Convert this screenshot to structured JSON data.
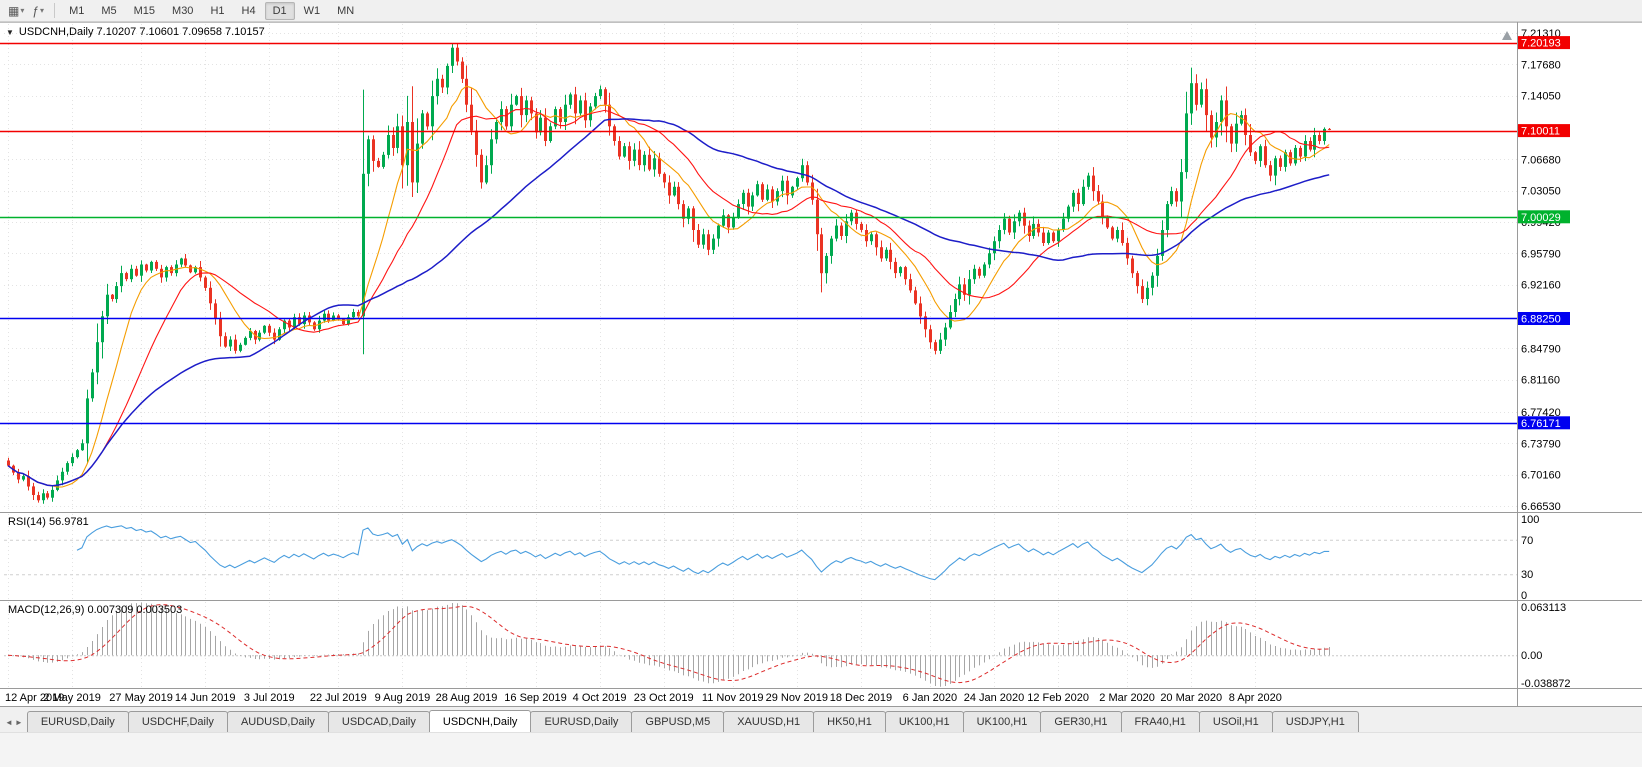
{
  "icons": {
    "chart_type": "▦",
    "indicators": "ƒ",
    "caret": "▾",
    "collapse": "▼",
    "tab_left": "◄",
    "tab_right": "►"
  },
  "toolbar": {
    "timeframes": [
      "M1",
      "M5",
      "M15",
      "M30",
      "H1",
      "H4",
      "D1",
      "W1",
      "MN"
    ],
    "active_timeframe": "D1"
  },
  "chart": {
    "collapse_icon": "▼",
    "header_text": "USDCNH,Daily  7.10207 7.10601 7.09658 7.10157"
  },
  "chart_data": {
    "type": "candlestick",
    "title": "USDCNH,Daily",
    "symbol": "USDCNH",
    "timeframe": "Daily",
    "ohlc_display": {
      "open": "7.10207",
      "high": "7.10601",
      "low": "7.09658",
      "close": "7.10157"
    },
    "y_axis": {
      "range": [
        6.6584,
        7.2235
      ],
      "ticks": [
        {
          "v": 7.2131,
          "t": "7.21310"
        },
        {
          "v": 7.1768,
          "t": "7.17680"
        },
        {
          "v": 7.1405,
          "t": "7.14050"
        },
        {
          "v": 7.0668,
          "t": "7.06680"
        },
        {
          "v": 7.0305,
          "t": "7.03050"
        },
        {
          "v": 6.9942,
          "t": "6.99420"
        },
        {
          "v": 6.9579,
          "t": "6.95790"
        },
        {
          "v": 6.9216,
          "t": "6.92160"
        },
        {
          "v": 6.8479,
          "t": "6.84790"
        },
        {
          "v": 6.8116,
          "t": "6.81160"
        },
        {
          "v": 6.7742,
          "t": "6.77420"
        },
        {
          "v": 6.7379,
          "t": "6.73790"
        },
        {
          "v": 6.7016,
          "t": "6.70160"
        },
        {
          "v": 6.6653,
          "t": "6.66530"
        }
      ]
    },
    "hlines": [
      {
        "price": 7.20193,
        "label": "7.20193",
        "color": "#f20000"
      },
      {
        "price": 7.10011,
        "label": "7.10011",
        "color": "#f20000"
      },
      {
        "price": 7.00029,
        "label": "7.00029",
        "color": "#00b22d"
      },
      {
        "price": 6.8825,
        "label": "6.88250",
        "color": "#0000f0"
      },
      {
        "price": 6.76171,
        "label": "6.76171",
        "color": "#0000f0"
      }
    ],
    "x_labels": [
      {
        "bar": 0,
        "t": "12 Apr 2019"
      },
      {
        "bar": 13,
        "t": "2 May 2019"
      },
      {
        "bar": 27,
        "t": "27 May 2019"
      },
      {
        "bar": 40,
        "t": "14 Jun 2019"
      },
      {
        "bar": 53,
        "t": "3 Jul 2019"
      },
      {
        "bar": 67,
        "t": "22 Jul 2019"
      },
      {
        "bar": 80,
        "t": "9 Aug 2019"
      },
      {
        "bar": 93,
        "t": "28 Aug 2019"
      },
      {
        "bar": 107,
        "t": "16 Sep 2019"
      },
      {
        "bar": 120,
        "t": "4 Oct 2019"
      },
      {
        "bar": 133,
        "t": "23 Oct 2019"
      },
      {
        "bar": 147,
        "t": "11 Nov 2019"
      },
      {
        "bar": 160,
        "t": "29 Nov 2019"
      },
      {
        "bar": 173,
        "t": "18 Dec 2019"
      },
      {
        "bar": 187,
        "t": "6 Jan 2020"
      },
      {
        "bar": 200,
        "t": "24 Jan 2020"
      },
      {
        "bar": 213,
        "t": "12 Feb 2020"
      },
      {
        "bar": 227,
        "t": "2 Mar 2020"
      },
      {
        "bar": 240,
        "t": "20 Mar 2020"
      },
      {
        "bar": 253,
        "t": "8 Apr 2020"
      }
    ],
    "closes": [
      6.712,
      6.704,
      6.696,
      6.7,
      6.688,
      6.678,
      6.672,
      6.68,
      6.675,
      6.684,
      6.695,
      6.705,
      6.715,
      6.722,
      6.73,
      6.738,
      6.79,
      6.82,
      6.855,
      6.885,
      6.91,
      6.905,
      6.92,
      6.935,
      6.928,
      6.94,
      6.932,
      6.945,
      6.938,
      6.948,
      6.94,
      6.93,
      6.942,
      6.935,
      6.945,
      6.952,
      6.944,
      6.936,
      6.942,
      6.93,
      6.918,
      6.9,
      6.882,
      6.862,
      6.85,
      6.858,
      6.845,
      6.852,
      6.86,
      6.868,
      6.858,
      6.866,
      6.874,
      6.866,
      6.858,
      6.87,
      6.88,
      6.872,
      6.884,
      6.876,
      6.886,
      6.878,
      6.87,
      6.88,
      6.888,
      6.88,
      6.886,
      6.882,
      6.876,
      6.884,
      6.89,
      6.885,
      7.05,
      7.09,
      7.065,
      7.058,
      7.072,
      7.095,
      7.08,
      7.105,
      7.06,
      7.11,
      7.04,
      7.085,
      7.12,
      7.105,
      7.14,
      7.16,
      7.15,
      7.175,
      7.196,
      7.18,
      7.16,
      7.13,
      7.1,
      7.072,
      7.04,
      7.06,
      7.09,
      7.11,
      7.125,
      7.105,
      7.13,
      7.14,
      7.118,
      7.135,
      7.12,
      7.098,
      7.115,
      7.088,
      7.105,
      7.125,
      7.11,
      7.13,
      7.142,
      7.12,
      7.135,
      7.112,
      7.128,
      7.14,
      7.148,
      7.13,
      7.105,
      7.088,
      7.07,
      7.082,
      7.065,
      7.078,
      7.06,
      7.072,
      7.055,
      7.068,
      7.05,
      7.04,
      7.025,
      7.035,
      7.015,
      6.998,
      7.01,
      6.985,
      6.968,
      6.98,
      6.962,
      6.975,
      6.99,
      7.002,
      6.988,
      7.0,
      7.015,
      7.028,
      7.012,
      7.025,
      7.038,
      7.02,
      7.032,
      7.018,
      7.03,
      7.042,
      7.025,
      7.035,
      7.045,
      7.06,
      7.04,
      7.02,
      6.98,
      6.935,
      6.955,
      6.975,
      6.99,
      6.978,
      6.995,
      7.005,
      6.992,
      6.985,
      6.972,
      6.98,
      6.965,
      6.952,
      6.962,
      6.948,
      6.935,
      6.942,
      6.928,
      6.915,
      6.9,
      6.885,
      6.87,
      6.855,
      6.845,
      6.858,
      6.872,
      6.89,
      6.905,
      6.922,
      6.91,
      6.928,
      6.94,
      6.932,
      6.945,
      6.958,
      6.972,
      6.985,
      6.998,
      6.982,
      6.995,
      7.005,
      6.99,
      6.978,
      6.992,
      6.982,
      6.97,
      6.982,
      6.972,
      6.985,
      6.998,
      7.012,
      7.028,
      7.015,
      7.035,
      7.048,
      7.03,
      7.018,
      7.0,
      6.988,
      6.975,
      6.985,
      6.97,
      6.952,
      6.935,
      6.92,
      6.905,
      6.918,
      6.932,
      6.955,
      6.985,
      7.015,
      7.03,
      7.018,
      7.052,
      7.12,
      7.155,
      7.13,
      7.148,
      7.118,
      7.092,
      7.11,
      7.135,
      7.105,
      7.085,
      7.108,
      7.118,
      7.095,
      7.075,
      7.065,
      7.082,
      7.06,
      7.048,
      7.068,
      7.058,
      7.075,
      7.062,
      7.08,
      7.07,
      7.088,
      7.078,
      7.095,
      7.088,
      7.102,
      7.1016
    ],
    "indicators": {
      "rsi": {
        "label": "RSI(14) 56.9781",
        "period": 14,
        "current": 56.9781,
        "levels": [
          {
            "v": 100,
            "t": "100"
          },
          {
            "v": 70,
            "t": "70"
          },
          {
            "v": 30,
            "t": "30"
          },
          {
            "v": 0,
            "t": "0"
          }
        ]
      },
      "macd": {
        "label": "MACD(12,26,9) 0.007309 0.003503",
        "fast": 12,
        "slow": 26,
        "signal": 9,
        "current_main": 0.007309,
        "current_signal": 0.003503,
        "scale": [
          {
            "v": 0.063113,
            "t": "0.063113"
          },
          {
            "v": 0,
            "t": "0.00"
          },
          {
            "v": -0.038872,
            "t": "-0.038872"
          }
        ]
      }
    },
    "colors": {
      "up": "#00a94f",
      "down": "#ea3323",
      "ma_fast": "#f59d00",
      "ma_mid": "#ff1414",
      "ma_slow": "#1d1dc8",
      "rsi": "#4a9ede",
      "macd_hist": "#a6a6a6",
      "macd_signal": "#dd2c2c",
      "grid": "#e3e3e3"
    }
  },
  "bottom_tabs": {
    "items": [
      "EURUSD,Daily",
      "USDCHF,Daily",
      "AUDUSD,Daily",
      "USDCAD,Daily",
      "USDCNH,Daily",
      "EURUSD,Daily",
      "GBPUSD,M5",
      "XAUUSD,H1",
      "HK50,H1",
      "UK100,H1",
      "UK100,H1",
      "GER30,H1",
      "FRA40,H1",
      "USOil,H1",
      "USDJPY,H1"
    ],
    "active_index": 4
  }
}
